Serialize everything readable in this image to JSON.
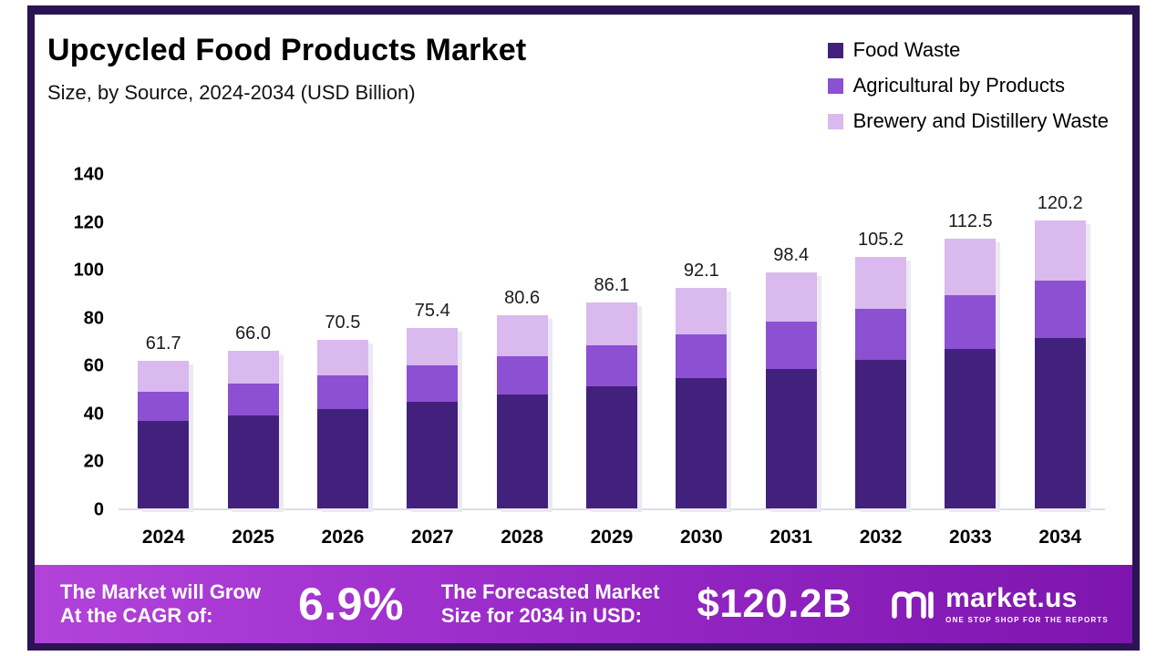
{
  "header": {
    "title": "Upcycled Food Products Market",
    "subtitle": "Size, by Source, 2024-2034 (USD Billion)"
  },
  "legend": [
    {
      "label": "Food Waste",
      "color": "#42217c"
    },
    {
      "label": "Agricultural by Products",
      "color": "#8c50d2"
    },
    {
      "label": "Brewery and Distillery Waste",
      "color": "#d9b9ee"
    }
  ],
  "chart_data": {
    "type": "bar",
    "stacked": true,
    "title": "Upcycled Food Products Market Size, by Source, 2024-2034 (USD Billion)",
    "xlabel": "",
    "ylabel": "USD Billion",
    "categories": [
      "2024",
      "2025",
      "2026",
      "2027",
      "2028",
      "2029",
      "2030",
      "2031",
      "2032",
      "2033",
      "2034"
    ],
    "series": [
      {
        "name": "Food Waste",
        "color": "#42217c",
        "values": [
          36.4,
          38.9,
          41.6,
          44.5,
          47.5,
          50.8,
          54.3,
          58.1,
          62.1,
          66.4,
          71.0
        ]
      },
      {
        "name": "Agricultural by Products",
        "color": "#8c50d2",
        "values": [
          12.3,
          13.2,
          14.1,
          15.1,
          16.2,
          17.2,
          18.4,
          19.8,
          21.1,
          22.5,
          24.1
        ]
      },
      {
        "name": "Brewery and Distillery Waste",
        "color": "#d9b9ee",
        "values": [
          13.0,
          13.9,
          14.8,
          15.8,
          16.9,
          18.1,
          19.4,
          20.5,
          22.0,
          23.6,
          25.1
        ]
      }
    ],
    "totals": [
      "61.7",
      "66.0",
      "70.5",
      "75.4",
      "80.6",
      "86.1",
      "92.1",
      "98.4",
      "105.2",
      "112.5",
      "120.2"
    ],
    "y_ticks": [
      140,
      120,
      100,
      80,
      60,
      40,
      20,
      0
    ],
    "ylim": [
      0,
      140
    ],
    "grid": false,
    "legend_position": "top-right"
  },
  "colors": {
    "frame": "#2b1452",
    "banner_gradient_start": "#b243da",
    "banner_gradient_mid": "#9a2bc9",
    "banner_gradient_end": "#7d15ae"
  },
  "banner": {
    "cagr_label_line1": "The Market will Grow",
    "cagr_label_line2": "At the CAGR of:",
    "cagr_value": "6.9%",
    "forecast_label_line1": "The Forecasted Market",
    "forecast_label_line2": "Size for 2034 in USD:",
    "forecast_value": "$120.2B",
    "brand": {
      "name": "market.us",
      "tagline": "ONE STOP SHOP FOR THE REPORTS"
    }
  }
}
